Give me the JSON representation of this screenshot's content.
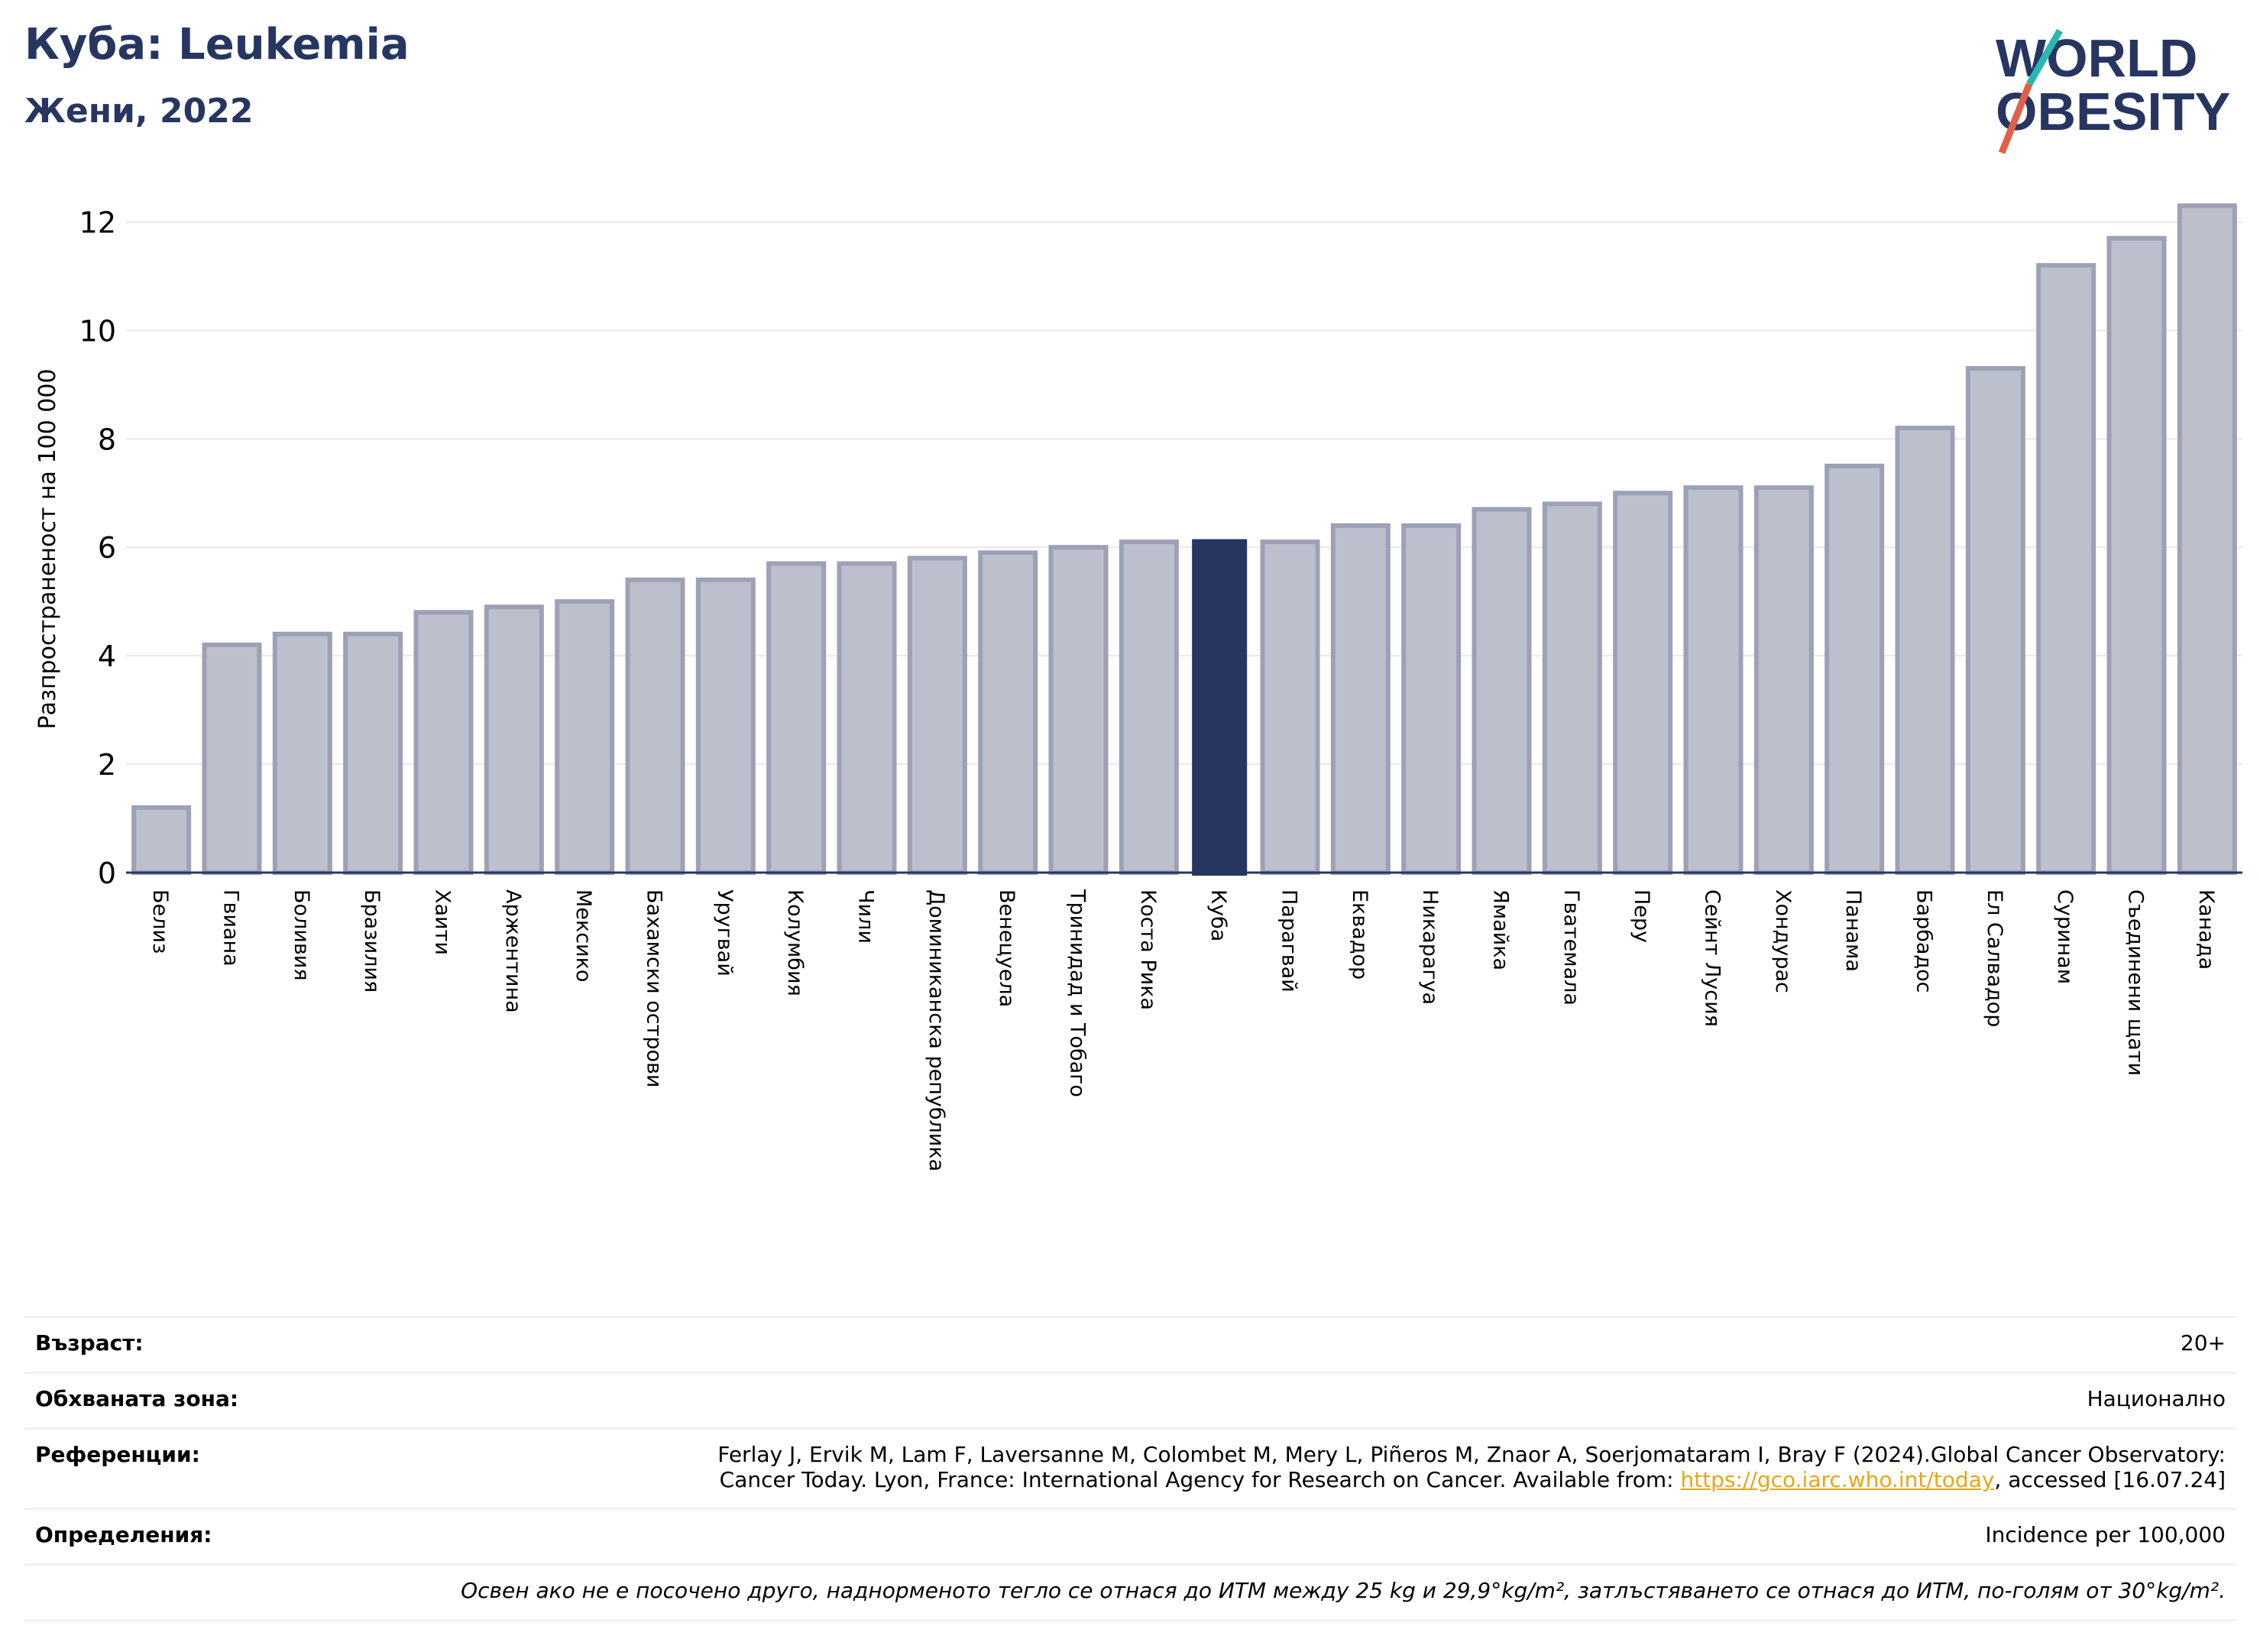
{
  "header": {
    "title": "Куба: Leukemia",
    "subtitle": "Жени, 2022"
  },
  "logo": {
    "line1": "WORLD",
    "line2": "OBESITY",
    "colors": {
      "text": "#273561",
      "slash_teal": "#2ab7b0",
      "slash_red": "#e0604a"
    }
  },
  "chart_data": {
    "type": "bar",
    "title": "",
    "xlabel": "",
    "ylabel": "Разпространеност  на 100 000",
    "ylim": [
      0,
      12.5
    ],
    "yticks": [
      0,
      2,
      4,
      6,
      8,
      10,
      12
    ],
    "grid": true,
    "highlight": "Куба",
    "colors": {
      "bar": "#bcc0cd",
      "bar_edge": "#9ca1b6",
      "highlight": "#273561",
      "grid": "#e6e8ee"
    },
    "categories": [
      "Белиз",
      "Гвиана",
      "Боливия",
      "Бразилия",
      "Хаити",
      "Аржентина",
      "Мексико",
      "Бахамски острови",
      "Уругвай",
      "Колумбия",
      "Чили",
      "Доминиканска република",
      "Венецуела",
      "Тринидад и Тобаго",
      "Коста Рика",
      "Куба",
      "Парагвай",
      "Еквадор",
      "Никарагуа",
      "Ямайка",
      "Гватемала",
      "Перу",
      "Сейнт Лусия",
      "Хондурас",
      "Панама",
      "Барбадос",
      "Ел Салвадор",
      "Суринам",
      "Съединени щати",
      "Канада"
    ],
    "values": [
      1.2,
      4.2,
      4.4,
      4.4,
      4.8,
      4.9,
      5.0,
      5.4,
      5.4,
      5.7,
      5.7,
      5.8,
      5.9,
      6.0,
      6.1,
      6.15,
      6.1,
      6.4,
      6.4,
      6.7,
      6.8,
      7.0,
      7.1,
      7.1,
      7.5,
      8.2,
      9.3,
      11.2,
      11.7,
      12.3
    ]
  },
  "info": {
    "age_label": "Възраст:",
    "age_value": "20+",
    "area_label": "Обхваната зона:",
    "area_value": "Национално",
    "ref_label": "Референции:",
    "ref_line1": "Ferlay J, Ervik M, Lam F, Laversanne M, Colombet M, Mery L, Piñeros M, Znaor A, Soerjomataram I, Bray F (2024).Global Cancer Observatory:",
    "ref_line2_pre": "Cancer Today. Lyon, France: International Agency for Research on Cancer. Available from: ",
    "ref_link": "https://gco.iarc.who.int/today",
    "ref_line2_post": ", accessed [16.07.24]",
    "def_label": "Определения:",
    "def_value": "Incidence per 100,000",
    "note": "Освен ако не е посочено друго, наднорменото тегло се отнася до ИТМ между 25 kg и 29,9°kg/m², затлъстяването се отнася до ИТМ, по-голям от 30°kg/m²."
  }
}
